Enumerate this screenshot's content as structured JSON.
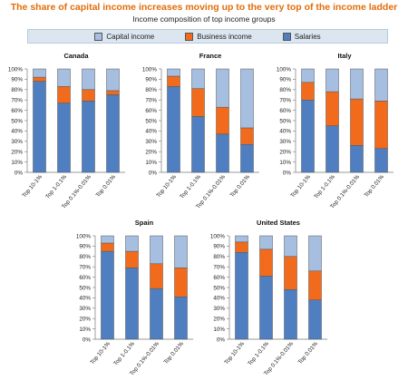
{
  "title": "The share of capital income increases moving up to the very top of the income ladder",
  "subtitle": "Income composition of top income groups",
  "legend": {
    "items": [
      {
        "label": "Capital income",
        "color": "#a6bfe0"
      },
      {
        "label": "Business income",
        "color": "#f26b1d"
      },
      {
        "label": "Salaries",
        "color": "#4f7fc0"
      }
    ]
  },
  "chart_data": [
    {
      "type": "bar",
      "stacked": true,
      "title": "Canada",
      "categories": [
        "Top 10-1%",
        "Top 1-0.1%",
        "Top 0.1%-0.01%",
        "Top 0.01%"
      ],
      "series": [
        {
          "name": "Salaries",
          "values": [
            88,
            67,
            69,
            75
          ]
        },
        {
          "name": "Business income",
          "values": [
            4,
            16,
            11,
            4
          ]
        },
        {
          "name": "Capital income",
          "values": [
            8,
            17,
            20,
            21
          ]
        }
      ],
      "ylim": [
        0,
        100
      ],
      "yticks": [
        "0%",
        "10%",
        "20%",
        "30%",
        "40%",
        "50%",
        "60%",
        "70%",
        "80%",
        "90%",
        "100%"
      ]
    },
    {
      "type": "bar",
      "stacked": true,
      "title": "France",
      "categories": [
        "Top 10-1%",
        "Top 1-0.1%",
        "Top 0.1%-0.01%",
        "Top 0.01%"
      ],
      "series": [
        {
          "name": "Salaries",
          "values": [
            83,
            54,
            37,
            27
          ]
        },
        {
          "name": "Business income",
          "values": [
            10,
            27,
            26,
            16
          ]
        },
        {
          "name": "Capital income",
          "values": [
            7,
            19,
            37,
            57
          ]
        }
      ],
      "ylim": [
        0,
        100
      ],
      "yticks": [
        "0%",
        "10%",
        "20%",
        "30%",
        "40%",
        "50%",
        "60%",
        "70%",
        "80%",
        "90%",
        "100%"
      ]
    },
    {
      "type": "bar",
      "stacked": true,
      "title": "Italy",
      "categories": [
        "Top 10-1%",
        "Top 1-0.1%",
        "Top 0.1%-0.01%",
        "Top 0.01%"
      ],
      "series": [
        {
          "name": "Salaries",
          "values": [
            70,
            45,
            26,
            23
          ]
        },
        {
          "name": "Business income",
          "values": [
            17,
            33,
            45,
            46
          ]
        },
        {
          "name": "Capital income",
          "values": [
            13,
            22,
            29,
            31
          ]
        }
      ],
      "ylim": [
        0,
        100
      ],
      "yticks": [
        "0%",
        "10%",
        "20%",
        "30%",
        "40%",
        "50%",
        "60%",
        "70%",
        "80%",
        "90%",
        "100%"
      ]
    },
    {
      "type": "bar",
      "stacked": true,
      "title": "Spain",
      "categories": [
        "Top 10-1%",
        "Top 1-0.1%",
        "Top 0.1%-0.01%",
        "Top 0.01%"
      ],
      "series": [
        {
          "name": "Salaries",
          "values": [
            85,
            69,
            49,
            41
          ]
        },
        {
          "name": "Business income",
          "values": [
            8,
            16,
            24,
            28
          ]
        },
        {
          "name": "Capital income",
          "values": [
            7,
            15,
            27,
            31
          ]
        }
      ],
      "ylim": [
        0,
        100
      ],
      "yticks": [
        "0%",
        "10%",
        "20%",
        "30%",
        "40%",
        "50%",
        "60%",
        "70%",
        "80%",
        "90%",
        "100%"
      ]
    },
    {
      "type": "bar",
      "stacked": true,
      "title": "United States",
      "categories": [
        "Top 10-1%",
        "Top 1-0.1%",
        "Top 0.1%-0.01%",
        "Top 0.01%"
      ],
      "series": [
        {
          "name": "Salaries",
          "values": [
            84,
            61,
            48,
            38
          ]
        },
        {
          "name": "Business income",
          "values": [
            10,
            26,
            32,
            28
          ]
        },
        {
          "name": "Capital income",
          "values": [
            6,
            13,
            20,
            34
          ]
        }
      ],
      "ylim": [
        0,
        100
      ],
      "yticks": [
        "0%",
        "10%",
        "20%",
        "30%",
        "40%",
        "50%",
        "60%",
        "70%",
        "80%",
        "90%",
        "100%"
      ]
    }
  ]
}
